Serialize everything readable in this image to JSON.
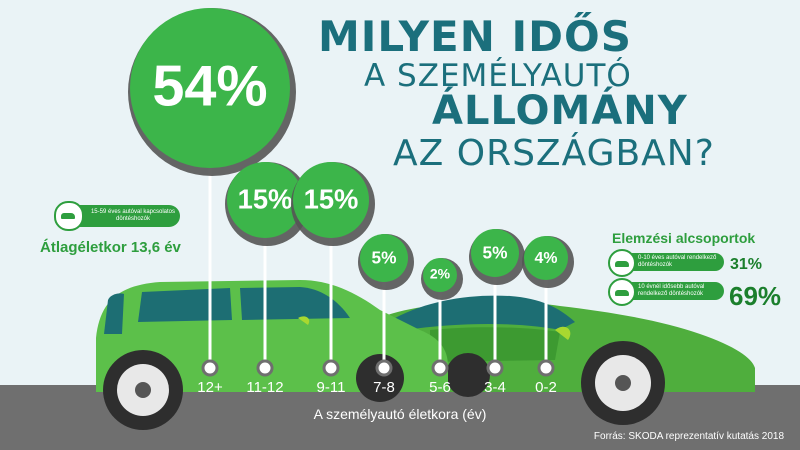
{
  "title": {
    "line1": "MILYEN IDŐS",
    "line2": "A SZEMÉLYAUTÓ",
    "line3": "ÁLLOMÁNY",
    "line4": "AZ ORSZÁGBAN?"
  },
  "left_panel": {
    "tag_text": "15-59 éves autóval kapcsolatos döntéshozók",
    "average_age": "Átlagéletkor 13,6 év"
  },
  "right_panel": {
    "heading": "Elemzési alcsoportok",
    "groups": [
      {
        "label": "0-10 éves autóval rendelkező döntéshozók",
        "value": "31%"
      },
      {
        "label": "10 évnél idősebb autóval rendelkező döntéshozók",
        "value": "69%"
      }
    ]
  },
  "x_axis_label": "A személyautó életkora (év)",
  "source": "Forrás: SKODA reprezentatív kutatás 2018",
  "colors": {
    "bubble_green": "#3cb54a",
    "title_teal": "#1b6f7c",
    "car_green": "#5cc04a",
    "road_gray": "#6f6f6f"
  },
  "chart_data": {
    "type": "bubble",
    "categories": [
      "12+",
      "11-12",
      "9-11",
      "7-8",
      "5-6",
      "3-4",
      "0-2"
    ],
    "values": [
      54,
      15,
      15,
      5,
      2,
      5,
      4
    ],
    "labels": [
      "54%",
      "15%",
      "15%",
      "5%",
      "2%",
      "5%",
      "4%"
    ],
    "unit": "%",
    "xlabel": "A személyautó életkora (év)",
    "ylabel": ""
  }
}
